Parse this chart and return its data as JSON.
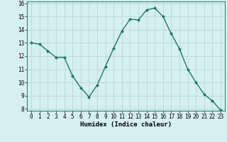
{
  "x": [
    0,
    1,
    2,
    3,
    4,
    5,
    6,
    7,
    8,
    9,
    10,
    11,
    12,
    13,
    14,
    15,
    16,
    17,
    18,
    19,
    20,
    21,
    22,
    23
  ],
  "y": [
    13.0,
    12.9,
    12.4,
    11.9,
    11.9,
    10.5,
    9.6,
    8.9,
    9.8,
    11.2,
    12.6,
    13.9,
    14.8,
    14.75,
    15.5,
    15.65,
    15.0,
    13.7,
    12.55,
    11.0,
    10.0,
    9.1,
    8.6,
    7.9
  ],
  "line_color": "#1a7a6e",
  "marker": "D",
  "marker_size": 2.0,
  "bg_color": "#d6eff0",
  "grid_color": "#b8d8d8",
  "xlabel": "Humidex (Indice chaleur)",
  "ylim_min": 8,
  "ylim_max": 16,
  "xlim_min": 0,
  "xlim_max": 23,
  "yticks": [
    8,
    9,
    10,
    11,
    12,
    13,
    14,
    15,
    16
  ],
  "xticks": [
    0,
    1,
    2,
    3,
    4,
    5,
    6,
    7,
    8,
    9,
    10,
    11,
    12,
    13,
    14,
    15,
    16,
    17,
    18,
    19,
    20,
    21,
    22,
    23
  ],
  "tick_fontsize": 5.5,
  "xlabel_fontsize": 6.5,
  "line_width": 1.0,
  "spine_color": "#2a8a7e"
}
